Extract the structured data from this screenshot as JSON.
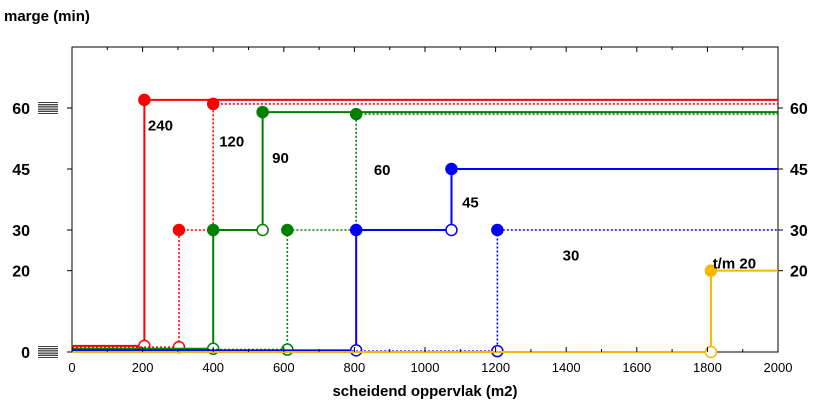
{
  "chart_data": {
    "type": "line",
    "ylabel": "marge (min)",
    "xlabel": "scheidend oppervlak (m2)",
    "xlim": [
      0,
      2000
    ],
    "ylim": [
      0,
      75
    ],
    "x_ticks": [
      "0",
      "200",
      "400",
      "600",
      "800",
      "1000",
      "1200",
      "1400",
      "1600",
      "1800",
      "2000"
    ],
    "y_ticks": [
      "0",
      "20",
      "30",
      "45",
      "60"
    ],
    "grid": false,
    "series": [
      {
        "name": "240",
        "color": "#ff0000",
        "dash": "solid",
        "points": [
          [
            0,
            1.5
          ],
          [
            205,
            1.5
          ],
          [
            205,
            62
          ],
          [
            2000,
            62
          ]
        ],
        "markers": [
          {
            "x": 205,
            "y": 1.5,
            "filled": false
          },
          {
            "x": 205,
            "y": 62,
            "filled": true
          }
        ],
        "label": {
          "text": "240",
          "x": 215,
          "y": 56
        }
      },
      {
        "name": "120",
        "color": "#ff0000",
        "dash": "dotted",
        "points": [
          [
            0,
            1.2
          ],
          [
            303,
            1.2
          ],
          [
            303,
            30
          ],
          [
            400,
            30
          ],
          [
            400,
            61
          ],
          [
            2000,
            61
          ]
        ],
        "markers": [
          {
            "x": 303,
            "y": 1.2,
            "filled": false
          },
          {
            "x": 303,
            "y": 30,
            "filled": true
          },
          {
            "x": 400,
            "y": 61,
            "filled": true
          }
        ],
        "label": {
          "text": "120",
          "x": 417,
          "y": 52
        }
      },
      {
        "name": "90",
        "color": "#008000",
        "dash": "solid",
        "points": [
          [
            0,
            0.8
          ],
          [
            400,
            0.8
          ],
          [
            400,
            30
          ],
          [
            540,
            30
          ],
          [
            540,
            59
          ],
          [
            2000,
            59
          ]
        ],
        "markers": [
          {
            "x": 400,
            "y": 0.8,
            "filled": false
          },
          {
            "x": 400,
            "y": 30,
            "filled": true
          },
          {
            "x": 540,
            "y": 30,
            "filled": false
          },
          {
            "x": 540,
            "y": 59,
            "filled": true
          }
        ],
        "label": {
          "text": "90",
          "x": 567,
          "y": 48
        }
      },
      {
        "name": "60",
        "color": "#008000",
        "dash": "dotted",
        "points": [
          [
            0,
            0.6
          ],
          [
            610,
            0.6
          ],
          [
            610,
            30
          ],
          [
            805,
            30
          ],
          [
            805,
            58.5
          ],
          [
            2000,
            58.5
          ]
        ],
        "markers": [
          {
            "x": 610,
            "y": 0.6,
            "filled": false
          },
          {
            "x": 610,
            "y": 30,
            "filled": true
          },
          {
            "x": 805,
            "y": 58.5,
            "filled": true
          }
        ],
        "label": {
          "text": "60",
          "x": 855,
          "y": 45
        }
      },
      {
        "name": "45",
        "color": "#0000ff",
        "dash": "solid",
        "points": [
          [
            0,
            0.4
          ],
          [
            805,
            0.4
          ],
          [
            805,
            30
          ],
          [
            1075,
            30
          ],
          [
            1075,
            45
          ],
          [
            2000,
            45
          ]
        ],
        "markers": [
          {
            "x": 805,
            "y": 0.4,
            "filled": false
          },
          {
            "x": 805,
            "y": 30,
            "filled": true
          },
          {
            "x": 1075,
            "y": 30,
            "filled": false
          },
          {
            "x": 1075,
            "y": 45,
            "filled": true
          }
        ],
        "label": {
          "text": "45",
          "x": 1105,
          "y": 37
        }
      },
      {
        "name": "30",
        "color": "#0000ff",
        "dash": "dotted",
        "points": [
          [
            0,
            0.2
          ],
          [
            1205,
            0.2
          ],
          [
            1205,
            30
          ],
          [
            2000,
            30
          ]
        ],
        "markers": [
          {
            "x": 1205,
            "y": 0.2,
            "filled": false
          },
          {
            "x": 1205,
            "y": 30,
            "filled": true
          }
        ],
        "label": {
          "text": "30",
          "x": 1390,
          "y": 24
        }
      },
      {
        "name": "t/m 20",
        "color": "#f5b800",
        "dash": "solid",
        "points": [
          [
            0,
            0
          ],
          [
            1810,
            0
          ],
          [
            1810,
            20
          ],
          [
            2000,
            20
          ]
        ],
        "markers": [
          {
            "x": 1810,
            "y": 0,
            "filled": false
          },
          {
            "x": 1810,
            "y": 20,
            "filled": true
          }
        ],
        "label": {
          "text": "t/m 20",
          "x": 1815,
          "y": 22
        }
      }
    ]
  }
}
